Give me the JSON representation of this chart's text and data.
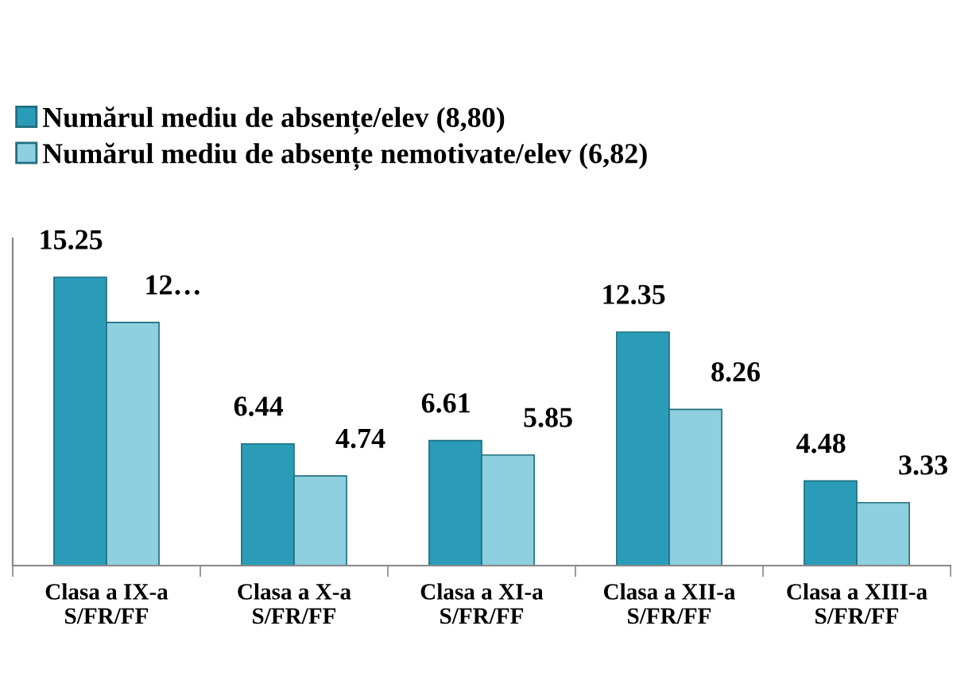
{
  "chart_data": {
    "type": "bar",
    "categories": [
      "Clasa a IX-a\nS/FR/FF",
      "Clasa a X-a\nS/FR/FF",
      "Clasa a XI-a\nS/FR/FF",
      "Clasa a XII-a\nS/FR/FF",
      "Clasa a XIII-a\nS/FR/FF"
    ],
    "series": [
      {
        "name": "Numărul mediu de absențe/elev (8,80)",
        "color": "#2b9cb8",
        "values": [
          15.25,
          6.44,
          6.61,
          12.35,
          4.48
        ],
        "value_labels": [
          "15.25",
          "6.44",
          "6.61",
          "12.35",
          "4.48"
        ]
      },
      {
        "name": "Numărul mediu de absențe nemotivate/elev (6,82)",
        "color": "#8ecfe0",
        "values": [
          12.86,
          4.74,
          5.85,
          8.26,
          3.33
        ],
        "value_labels": [
          "12…",
          "4.74",
          "5.85",
          "8.26",
          "3.33"
        ]
      }
    ],
    "legend": "top left",
    "grid": false
  }
}
